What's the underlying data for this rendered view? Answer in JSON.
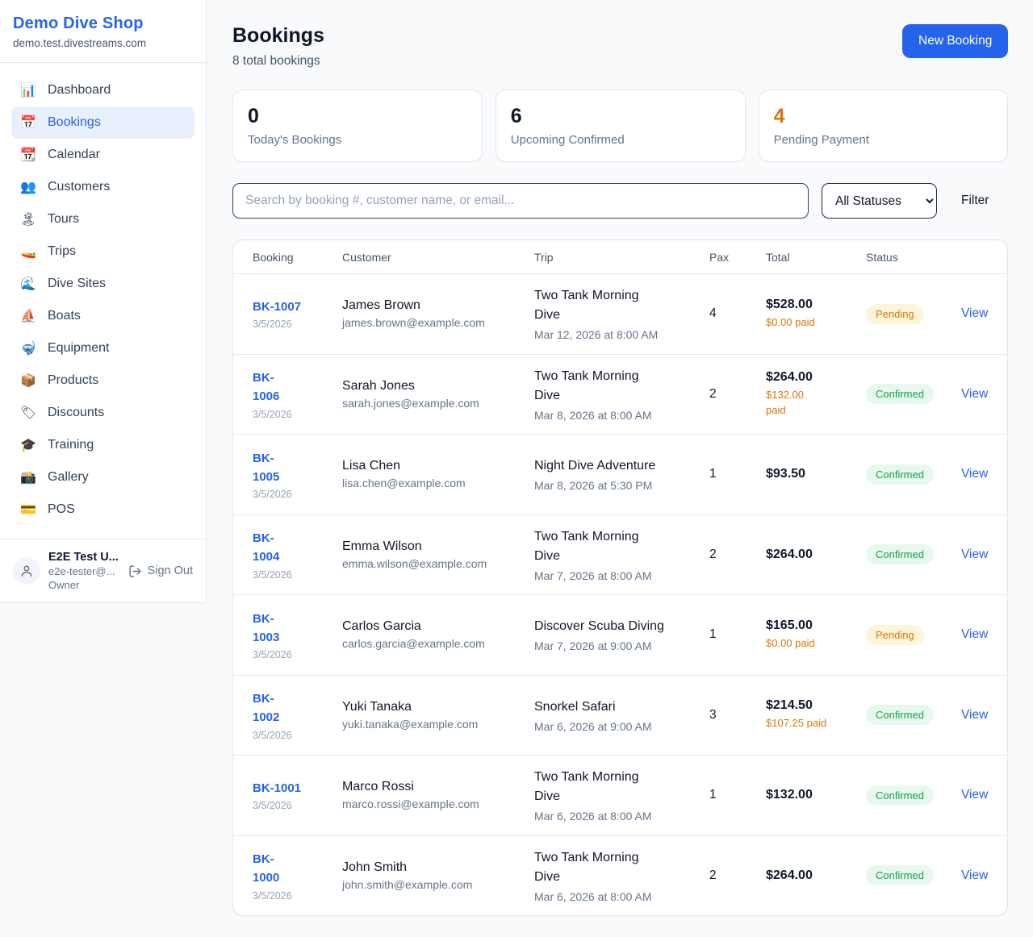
{
  "sidebar": {
    "brand": {
      "name": "Demo Dive Shop",
      "domain": "demo.test.divestreams.com"
    },
    "items": [
      {
        "label": "Dashboard",
        "icon": "📊",
        "icon_name": "dashboard-icon",
        "active": false
      },
      {
        "label": "Bookings",
        "icon": "📅",
        "icon_name": "bookings-icon",
        "active": true
      },
      {
        "label": "Calendar",
        "icon": "📆",
        "icon_name": "calendar-icon",
        "active": false
      },
      {
        "label": "Customers",
        "icon": "👥",
        "icon_name": "customers-icon",
        "active": false
      },
      {
        "label": "Tours",
        "icon": "🏝",
        "icon_name": "tours-icon",
        "active": false
      },
      {
        "label": "Trips",
        "icon": "🚤",
        "icon_name": "trips-icon",
        "active": false
      },
      {
        "label": "Dive Sites",
        "icon": "🌊",
        "icon_name": "dive-sites-icon",
        "active": false
      },
      {
        "label": "Boats",
        "icon": "⛵",
        "icon_name": "boats-icon",
        "active": false
      },
      {
        "label": "Equipment",
        "icon": "🤿",
        "icon_name": "equipment-icon",
        "active": false
      },
      {
        "label": "Products",
        "icon": "📦",
        "icon_name": "products-icon",
        "active": false
      },
      {
        "label": "Discounts",
        "icon": "🏷",
        "icon_name": "discounts-icon",
        "active": false
      },
      {
        "label": "Training",
        "icon": "🎓",
        "icon_name": "training-icon",
        "active": false
      },
      {
        "label": "Gallery",
        "icon": "📸",
        "icon_name": "gallery-icon",
        "active": false
      },
      {
        "label": "POS",
        "icon": "💳",
        "icon_name": "pos-icon",
        "active": false
      }
    ],
    "user": {
      "name": "E2E Test U...",
      "email": "e2e-tester@...",
      "role": "Owner",
      "sign_out_label": "Sign Out"
    }
  },
  "header": {
    "title": "Bookings",
    "subtitle": "8 total bookings",
    "new_booking_label": "New Booking"
  },
  "stats": [
    {
      "value": "0",
      "label": "Today's Bookings",
      "value_color": "#0f172a"
    },
    {
      "value": "6",
      "label": "Upcoming Confirmed",
      "value_color": "#0f172a"
    },
    {
      "value": "4",
      "label": "Pending Payment",
      "value_color": "#d97706"
    }
  ],
  "controls": {
    "search_placeholder": "Search by booking #, customer name, or email...",
    "status_filter_value": "All Statuses",
    "filter_label": "Filter"
  },
  "table": {
    "columns": [
      "Booking",
      "Customer",
      "Trip",
      "Pax",
      "Total",
      "Status"
    ],
    "view_label": "View",
    "status_styles": {
      "Pending": {
        "bg": "#fdf5d9",
        "text": "#d97706"
      },
      "Confirmed": {
        "bg": "#e7f8ee",
        "text": "#16a34a"
      }
    },
    "rows": [
      {
        "id": "BK-1007",
        "id_wrapped": false,
        "date": "3/5/2026",
        "customer": "James Brown",
        "email": "james.brown@example.com",
        "trip": "Two Tank Morning Dive",
        "trip_datetime": "Mar 12, 2026 at 8:00 AM",
        "pax": "4",
        "total": "$528.00",
        "paid": "$0.00 paid",
        "paid_wrapped": false,
        "status": "Pending"
      },
      {
        "id": "BK-1006",
        "id_wrapped": true,
        "date": "3/5/2026",
        "customer": "Sarah Jones",
        "email": "sarah.jones@example.com",
        "trip": "Two Tank Morning Dive",
        "trip_datetime": "Mar 8, 2026 at 8:00 AM",
        "pax": "2",
        "total": "$264.00",
        "paid": "$132.00 paid",
        "paid_wrapped": true,
        "status": "Confirmed"
      },
      {
        "id": "BK-1005",
        "id_wrapped": true,
        "date": "3/5/2026",
        "customer": "Lisa Chen",
        "email": "lisa.chen@example.com",
        "trip": "Night Dive Adventure",
        "trip_datetime": "Mar 8, 2026 at 5:30 PM",
        "pax": "1",
        "total": "$93.50",
        "paid": null,
        "paid_wrapped": false,
        "status": "Confirmed"
      },
      {
        "id": "BK-1004",
        "id_wrapped": true,
        "date": "3/5/2026",
        "customer": "Emma Wilson",
        "email": "emma.wilson@example.com",
        "trip": "Two Tank Morning Dive",
        "trip_datetime": "Mar 7, 2026 at 8:00 AM",
        "pax": "2",
        "total": "$264.00",
        "paid": null,
        "paid_wrapped": false,
        "status": "Confirmed"
      },
      {
        "id": "BK-1003",
        "id_wrapped": true,
        "date": "3/5/2026",
        "customer": "Carlos Garcia",
        "email": "carlos.garcia@example.com",
        "trip": "Discover Scuba Diving",
        "trip_datetime": "Mar 7, 2026 at 9:00 AM",
        "pax": "1",
        "total": "$165.00",
        "paid": "$0.00 paid",
        "paid_wrapped": false,
        "status": "Pending"
      },
      {
        "id": "BK-1002",
        "id_wrapped": true,
        "date": "3/5/2026",
        "customer": "Yuki Tanaka",
        "email": "yuki.tanaka@example.com",
        "trip": "Snorkel Safari",
        "trip_datetime": "Mar 6, 2026 at 9:00 AM",
        "pax": "3",
        "total": "$214.50",
        "paid": "$107.25 paid",
        "paid_wrapped": false,
        "status": "Confirmed"
      },
      {
        "id": "BK-1001",
        "id_wrapped": false,
        "date": "3/5/2026",
        "customer": "Marco Rossi",
        "email": "marco.rossi@example.com",
        "trip": "Two Tank Morning Dive",
        "trip_datetime": "Mar 6, 2026 at 8:00 AM",
        "pax": "1",
        "total": "$132.00",
        "paid": null,
        "paid_wrapped": false,
        "status": "Confirmed"
      },
      {
        "id": "BK-1000",
        "id_wrapped": true,
        "date": "3/5/2026",
        "customer": "John Smith",
        "email": "john.smith@example.com",
        "trip": "Two Tank Morning Dive",
        "trip_datetime": "Mar 6, 2026 at 8:00 AM",
        "pax": "2",
        "total": "$264.00",
        "paid": null,
        "paid_wrapped": false,
        "status": "Confirmed"
      }
    ]
  }
}
